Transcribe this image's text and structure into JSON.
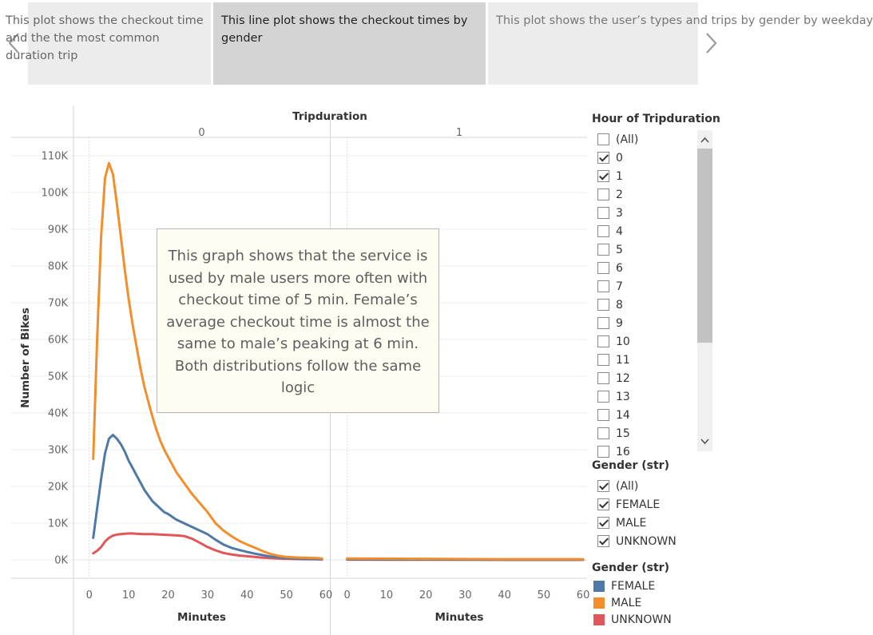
{
  "story": {
    "points": [
      {
        "text": "This plot shows the checkout time and the the most common duration trip"
      },
      {
        "text": "This line plot shows the checkout times by gender"
      },
      {
        "text": "This plot shows the user’s types and trips by gender by weekday"
      }
    ]
  },
  "annotation": {
    "text": "This graph shows that the service is used by male users more often with checkout time of 5 min. Female’s average checkout time is almost the same to male’s peaking at 6 min. Both distributions follow the same logic"
  },
  "filters": {
    "hour_title": "Hour of Tripduration",
    "hour_items": [
      {
        "label": "(All)",
        "checked": false
      },
      {
        "label": "0",
        "checked": true
      },
      {
        "label": "1",
        "checked": true
      },
      {
        "label": "2",
        "checked": false
      },
      {
        "label": "3",
        "checked": false
      },
      {
        "label": "4",
        "checked": false
      },
      {
        "label": "5",
        "checked": false
      },
      {
        "label": "6",
        "checked": false
      },
      {
        "label": "7",
        "checked": false
      },
      {
        "label": "8",
        "checked": false
      },
      {
        "label": "9",
        "checked": false
      },
      {
        "label": "10",
        "checked": false
      },
      {
        "label": "11",
        "checked": false
      },
      {
        "label": "12",
        "checked": false
      },
      {
        "label": "13",
        "checked": false
      },
      {
        "label": "14",
        "checked": false
      },
      {
        "label": "15",
        "checked": false
      },
      {
        "label": "16",
        "checked": false
      }
    ],
    "gender_title": "Gender (str)",
    "gender_items": [
      {
        "label": "(All)",
        "checked": true
      },
      {
        "label": "FEMALE",
        "checked": true
      },
      {
        "label": "MALE",
        "checked": true
      },
      {
        "label": "UNKNOWN",
        "checked": true
      }
    ]
  },
  "legend": {
    "title": "Gender (str)",
    "items": [
      {
        "label": "FEMALE",
        "color": "#4e79a7"
      },
      {
        "label": "MALE",
        "color": "#f28e2b"
      },
      {
        "label": "UNKNOWN",
        "color": "#e15759"
      }
    ]
  },
  "chart_data": {
    "type": "line",
    "column_header": "Tripduration",
    "panels": [
      "0",
      "1"
    ],
    "xlabel": "Minutes",
    "ylabel": "Number of Bikes",
    "xlim": [
      -4,
      61
    ],
    "xticks": [
      0,
      10,
      20,
      30,
      40,
      50,
      60
    ],
    "ylim": [
      -5000,
      115000
    ],
    "yticks": [
      0,
      10000,
      20000,
      30000,
      40000,
      50000,
      60000,
      70000,
      80000,
      90000,
      100000,
      110000
    ],
    "ytick_labels": [
      "0K",
      "10K",
      "20K",
      "30K",
      "40K",
      "50K",
      "60K",
      "70K",
      "80K",
      "90K",
      "100K",
      "110K"
    ],
    "grid": true,
    "series": [
      {
        "name": "MALE",
        "color": "#f28e2b",
        "panel0": [
          [
            1,
            27500
          ],
          [
            2,
            60000
          ],
          [
            3,
            88000
          ],
          [
            4,
            104000
          ],
          [
            5,
            108000
          ],
          [
            6,
            105000
          ],
          [
            7,
            97000
          ],
          [
            8,
            88000
          ],
          [
            9,
            79000
          ],
          [
            10,
            71000
          ],
          [
            11,
            64000
          ],
          [
            12,
            58000
          ],
          [
            13,
            52000
          ],
          [
            14,
            47000
          ],
          [
            15,
            43000
          ],
          [
            16,
            39000
          ],
          [
            17,
            35500
          ],
          [
            18,
            32500
          ],
          [
            19,
            30000
          ],
          [
            20,
            28000
          ],
          [
            22,
            24000
          ],
          [
            24,
            21000
          ],
          [
            26,
            18000
          ],
          [
            28,
            15500
          ],
          [
            30,
            13000
          ],
          [
            32,
            10000
          ],
          [
            34,
            8000
          ],
          [
            36,
            6500
          ],
          [
            38,
            5200
          ],
          [
            40,
            4200
          ],
          [
            42,
            3300
          ],
          [
            44,
            2400
          ],
          [
            46,
            1600
          ],
          [
            48,
            1100
          ],
          [
            50,
            800
          ],
          [
            54,
            600
          ],
          [
            58,
            500
          ],
          [
            59,
            400
          ]
        ],
        "panel1": [
          [
            0,
            400
          ],
          [
            10,
            350
          ],
          [
            20,
            300
          ],
          [
            30,
            250
          ],
          [
            40,
            200
          ],
          [
            50,
            200
          ],
          [
            60,
            200
          ]
        ]
      },
      {
        "name": "FEMALE",
        "color": "#4e79a7",
        "panel0": [
          [
            1,
            6000
          ],
          [
            2,
            14000
          ],
          [
            3,
            22000
          ],
          [
            4,
            29000
          ],
          [
            5,
            33000
          ],
          [
            6,
            34000
          ],
          [
            7,
            33000
          ],
          [
            8,
            31500
          ],
          [
            9,
            29500
          ],
          [
            10,
            27000
          ],
          [
            11,
            25000
          ],
          [
            12,
            23000
          ],
          [
            13,
            21000
          ],
          [
            14,
            19000
          ],
          [
            15,
            17500
          ],
          [
            16,
            16000
          ],
          [
            17,
            15000
          ],
          [
            18,
            14000
          ],
          [
            19,
            13000
          ],
          [
            20,
            12500
          ],
          [
            22,
            11000
          ],
          [
            24,
            10000
          ],
          [
            26,
            9000
          ],
          [
            28,
            8000
          ],
          [
            30,
            7000
          ],
          [
            32,
            5500
          ],
          [
            34,
            4200
          ],
          [
            36,
            3300
          ],
          [
            38,
            2700
          ],
          [
            40,
            2200
          ],
          [
            42,
            1700
          ],
          [
            44,
            1300
          ],
          [
            46,
            900
          ],
          [
            48,
            700
          ],
          [
            50,
            500
          ],
          [
            54,
            300
          ],
          [
            58,
            200
          ],
          [
            59,
            200
          ]
        ],
        "panel1": [
          [
            0,
            150
          ],
          [
            10,
            120
          ],
          [
            20,
            100
          ],
          [
            30,
            80
          ],
          [
            40,
            70
          ],
          [
            50,
            60
          ],
          [
            60,
            50
          ]
        ]
      },
      {
        "name": "UNKNOWN",
        "color": "#e15759",
        "panel0": [
          [
            1,
            1800
          ],
          [
            2,
            2500
          ],
          [
            3,
            3500
          ],
          [
            4,
            5000
          ],
          [
            5,
            6000
          ],
          [
            6,
            6600
          ],
          [
            7,
            6900
          ],
          [
            8,
            7000
          ],
          [
            9,
            7100
          ],
          [
            10,
            7200
          ],
          [
            11,
            7200
          ],
          [
            12,
            7100
          ],
          [
            14,
            7000
          ],
          [
            16,
            7000
          ],
          [
            18,
            6900
          ],
          [
            20,
            6800
          ],
          [
            22,
            6700
          ],
          [
            24,
            6500
          ],
          [
            26,
            5800
          ],
          [
            28,
            4700
          ],
          [
            30,
            3500
          ],
          [
            32,
            2600
          ],
          [
            34,
            1900
          ],
          [
            36,
            1500
          ],
          [
            38,
            1200
          ],
          [
            40,
            1000
          ],
          [
            42,
            800
          ],
          [
            44,
            600
          ],
          [
            46,
            500
          ],
          [
            48,
            400
          ],
          [
            50,
            300
          ],
          [
            54,
            200
          ],
          [
            58,
            150
          ],
          [
            59,
            100
          ]
        ],
        "panel1": [
          [
            0,
            80
          ],
          [
            10,
            60
          ],
          [
            20,
            50
          ],
          [
            30,
            40
          ],
          [
            40,
            30
          ],
          [
            50,
            30
          ],
          [
            60,
            20
          ]
        ]
      }
    ]
  }
}
